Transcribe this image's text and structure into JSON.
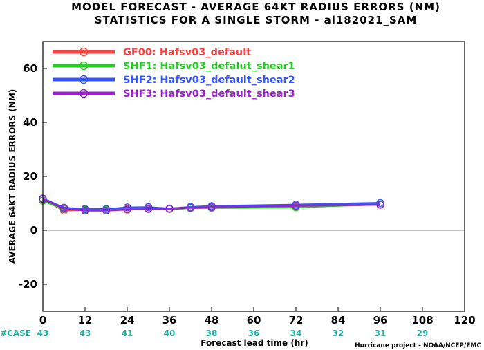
{
  "chart_data": {
    "type": "line",
    "title": "MODEL FORECAST - AVERAGE 64KT RADIUS ERRORS (NM)",
    "subtitle": "STATISTICS FOR A SINGLE STORM - al182021_SAM",
    "xlabel": "Forecast lead time (hr)",
    "ylabel": "AVERAGE 64KT RADIUS ERRORS (NM)",
    "xlim": [
      0,
      120
    ],
    "ylim": [
      -30,
      70
    ],
    "x_ticks": [
      "0",
      "12",
      "24",
      "36",
      "48",
      "60",
      "72",
      "84",
      "96",
      "108",
      "120"
    ],
    "y_ticks": [
      "60",
      "40",
      "20",
      "0",
      "-20"
    ],
    "legend_position": "top-left",
    "case_label": "#CASE",
    "cases": [
      {
        "x": 0,
        "label": "43"
      },
      {
        "x": 12,
        "label": "43"
      },
      {
        "x": 24,
        "label": "41"
      },
      {
        "x": 36,
        "label": "40"
      },
      {
        "x": 48,
        "label": "38"
      },
      {
        "x": 60,
        "label": "36"
      },
      {
        "x": 72,
        "label": "34"
      },
      {
        "x": 84,
        "label": "32"
      },
      {
        "x": 96,
        "label": "31"
      },
      {
        "x": 108,
        "label": "29"
      }
    ],
    "credit": "Hurricane project - NOAA/NCEP/EMC",
    "series": [
      {
        "name": "GF00: Hafsv03_default",
        "color": "#ff4040",
        "x": [
          0,
          6,
          12,
          18,
          24,
          30,
          36,
          42,
          48,
          72,
          96
        ],
        "y": [
          11.5,
          7.3,
          7.6,
          7.5,
          8.0,
          8.1,
          7.9,
          8.2,
          8.5,
          8.8,
          9.5
        ]
      },
      {
        "name": "SHF1: Hafsv03_defalut_shear1",
        "color": "#22cc22",
        "x": [
          0,
          6,
          12,
          18,
          24,
          30,
          36,
          42,
          48,
          72,
          96
        ],
        "y": [
          11.0,
          7.8,
          7.6,
          7.6,
          7.8,
          7.9,
          7.9,
          8.2,
          8.3,
          8.5,
          9.7
        ]
      },
      {
        "name": "SHF2: Hafsv03_default_shear2",
        "color": "#3355ff",
        "x": [
          0,
          6,
          12,
          18,
          24,
          30,
          36,
          42,
          48,
          72,
          96
        ],
        "y": [
          11.8,
          8.4,
          7.9,
          7.9,
          8.5,
          8.6,
          8.1,
          8.7,
          9.0,
          9.5,
          10.2
        ]
      },
      {
        "name": "SHF3: Hafsv03_default_shear3",
        "color": "#9922cc",
        "x": [
          0,
          6,
          12,
          18,
          24,
          30,
          36,
          42,
          48,
          72,
          96
        ],
        "y": [
          11.6,
          8.1,
          7.3,
          7.3,
          7.7,
          7.9,
          8.0,
          8.4,
          8.6,
          9.1,
          9.5
        ]
      }
    ]
  }
}
